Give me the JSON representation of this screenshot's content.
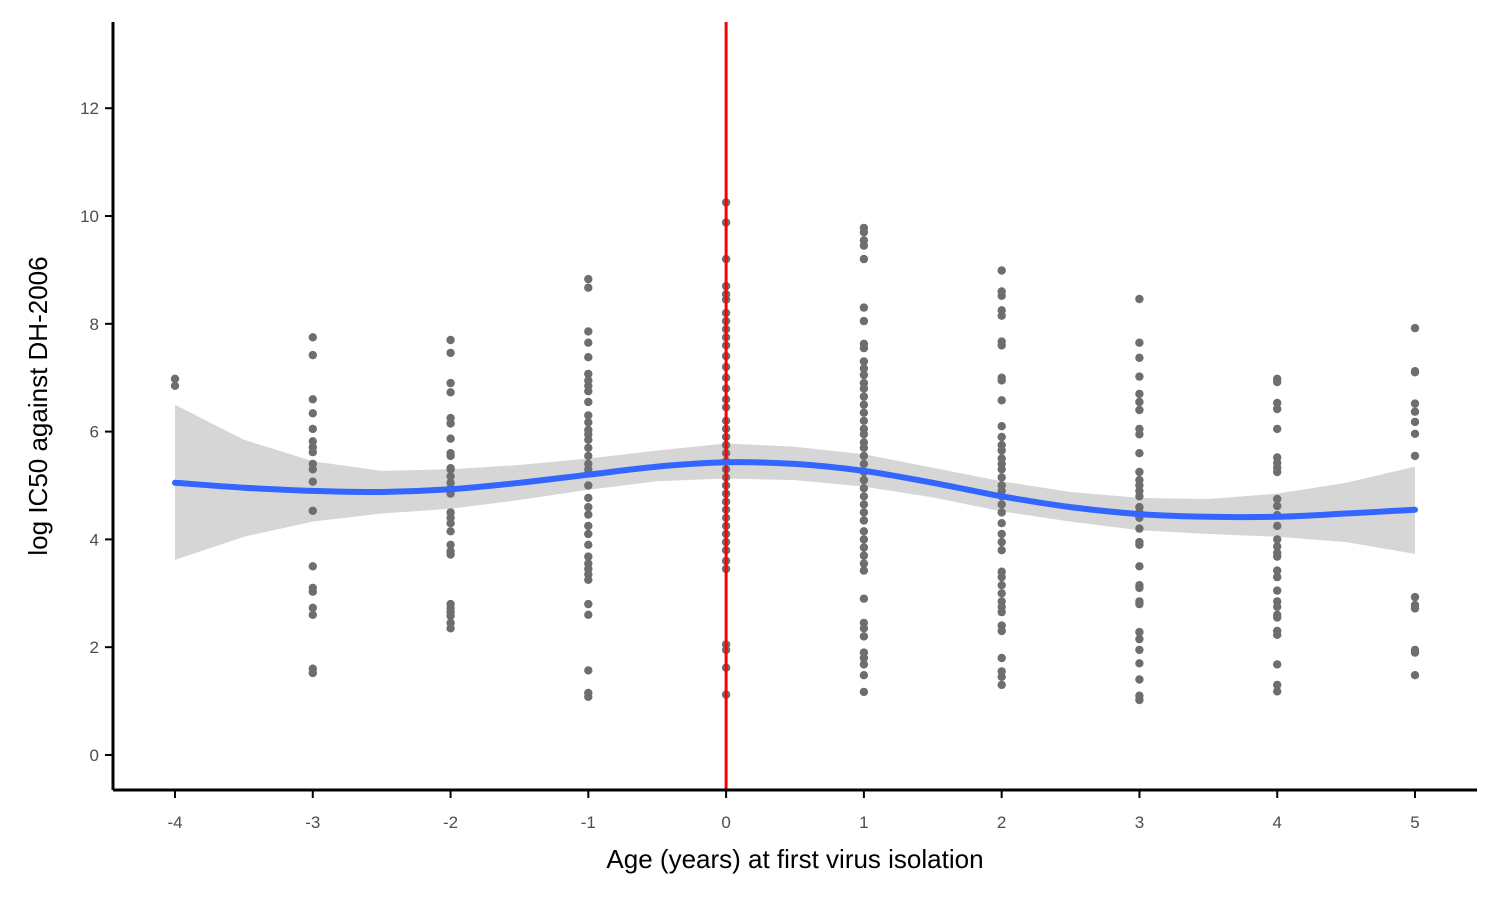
{
  "chart_data": {
    "type": "scatter",
    "title": "",
    "xlabel": "Age (years) at first virus isolation",
    "ylabel": "log IC50 against DH-2006",
    "xlim": [
      -4.45,
      5.45
    ],
    "ylim": [
      -0.65,
      13.6
    ],
    "x_ticks": [
      -4,
      -3,
      -2,
      -1,
      0,
      1,
      2,
      3,
      4,
      5
    ],
    "x_tick_labels": [
      "-4",
      "-3",
      "-2",
      "-1",
      "0",
      "1",
      "2",
      "3",
      "4",
      "5"
    ],
    "y_ticks": [
      0,
      2,
      4,
      6,
      8,
      10,
      12
    ],
    "y_tick_labels": [
      "0",
      "2",
      "4",
      "6",
      "8",
      "10",
      "12"
    ],
    "grid": false,
    "legend": "none",
    "colors": {
      "points": "#6e6e6e",
      "smooth_line": "#3366ff",
      "confidence_band": "#d6d6d6",
      "reference_line": "#ff0000",
      "axis": "#000000"
    },
    "reference_line": {
      "x": 0
    },
    "points": [
      {
        "x": -4,
        "y": [
          6.98,
          6.85
        ]
      },
      {
        "x": -3,
        "y": [
          7.75,
          7.42,
          6.6,
          6.34,
          6.05,
          5.82,
          5.71,
          5.62,
          5.4,
          5.3,
          5.07,
          4.53,
          3.5,
          3.1,
          3.03,
          2.73,
          2.6,
          1.6,
          1.52
        ]
      },
      {
        "x": -2,
        "y": [
          7.7,
          7.46,
          6.9,
          6.73,
          6.25,
          6.15,
          5.87,
          5.6,
          5.55,
          5.32,
          5.3,
          5.17,
          5.05,
          4.95,
          4.85,
          4.5,
          4.4,
          4.3,
          4.15,
          3.9,
          3.78,
          3.72,
          2.8,
          2.72,
          2.65,
          2.58,
          2.45,
          2.35
        ]
      },
      {
        "x": -1,
        "y": [
          8.83,
          8.67,
          7.86,
          7.65,
          7.38,
          7.07,
          6.95,
          6.85,
          6.75,
          6.55,
          6.3,
          6.17,
          6.03,
          5.95,
          5.85,
          5.7,
          5.55,
          5.4,
          5.3,
          5.23,
          5.0,
          4.77,
          4.6,
          4.46,
          4.25,
          4.1,
          3.9,
          3.68,
          3.55,
          3.45,
          3.35,
          3.25,
          2.8,
          2.6,
          1.57,
          1.15,
          1.08
        ]
      },
      {
        "x": 0,
        "y": [
          10.25,
          9.88,
          9.2,
          8.7,
          8.55,
          8.45,
          8.2,
          8.05,
          7.9,
          7.75,
          7.6,
          7.4,
          7.2,
          7.0,
          6.8,
          6.6,
          6.45,
          6.2,
          6.05,
          5.9,
          5.75,
          5.6,
          5.45,
          5.3,
          5.15,
          5.0,
          4.85,
          4.7,
          4.55,
          4.4,
          4.25,
          4.1,
          3.95,
          3.8,
          3.6,
          3.45,
          2.05,
          1.95,
          1.62,
          1.12
        ]
      },
      {
        "x": 1,
        "y": [
          9.78,
          9.7,
          9.55,
          9.45,
          9.2,
          8.3,
          8.05,
          7.63,
          7.55,
          7.3,
          7.17,
          7.05,
          6.9,
          6.8,
          6.65,
          6.5,
          6.35,
          6.2,
          6.05,
          5.95,
          5.8,
          5.7,
          5.55,
          5.4,
          5.25,
          5.1,
          4.95,
          4.8,
          4.65,
          4.5,
          4.35,
          4.15,
          4.0,
          3.85,
          3.7,
          3.55,
          3.42,
          2.9,
          2.45,
          2.35,
          2.2,
          1.9,
          1.8,
          1.68,
          1.48,
          1.17
        ]
      },
      {
        "x": 2,
        "y": [
          8.99,
          8.6,
          8.52,
          8.25,
          8.15,
          7.67,
          7.6,
          7.0,
          6.95,
          6.58,
          6.1,
          5.9,
          5.75,
          5.65,
          5.5,
          5.4,
          5.3,
          5.15,
          5.0,
          4.9,
          4.8,
          4.65,
          4.5,
          4.3,
          4.1,
          3.95,
          3.8,
          3.4,
          3.3,
          3.15,
          3.0,
          2.85,
          2.75,
          2.65,
          2.4,
          2.3,
          1.8,
          1.55,
          1.45,
          1.3
        ]
      },
      {
        "x": 3,
        "y": [
          8.46,
          7.65,
          7.37,
          7.02,
          6.7,
          6.55,
          6.4,
          6.05,
          5.95,
          5.6,
          5.25,
          5.1,
          5.0,
          4.9,
          4.8,
          4.6,
          4.5,
          4.4,
          4.2,
          3.95,
          3.9,
          3.5,
          3.15,
          3.1,
          2.85,
          2.8,
          2.28,
          2.15,
          1.95,
          1.7,
          1.4,
          1.1,
          1.02
        ]
      },
      {
        "x": 4,
        "y": [
          6.98,
          6.92,
          6.53,
          6.42,
          6.05,
          5.52,
          5.42,
          5.33,
          5.25,
          4.75,
          4.62,
          4.45,
          4.25,
          4.0,
          3.87,
          3.75,
          3.68,
          3.42,
          3.3,
          3.05,
          2.85,
          2.75,
          2.6,
          2.55,
          2.3,
          2.23,
          1.68,
          1.3,
          1.18
        ]
      },
      {
        "x": 5,
        "y": [
          7.92,
          7.12,
          7.1,
          6.52,
          6.37,
          6.18,
          5.96,
          5.55,
          2.93,
          2.78,
          2.72,
          1.95,
          1.9,
          1.48
        ]
      }
    ],
    "smooth": {
      "x": [
        -4,
        -3.5,
        -3,
        -2.5,
        -2,
        -1.5,
        -1,
        -0.5,
        0,
        0.5,
        1,
        1.5,
        2,
        2.5,
        3,
        3.5,
        4,
        4.5,
        5
      ],
      "y": [
        5.05,
        4.96,
        4.9,
        4.88,
        4.93,
        5.05,
        5.2,
        5.35,
        5.43,
        5.4,
        5.27,
        5.05,
        4.8,
        4.6,
        4.47,
        4.42,
        4.42,
        4.48,
        4.55
      ],
      "lower": [
        3.62,
        4.05,
        4.33,
        4.48,
        4.57,
        4.73,
        4.92,
        5.08,
        5.13,
        5.1,
        4.98,
        4.78,
        4.52,
        4.33,
        4.17,
        4.1,
        4.05,
        3.95,
        3.73
      ],
      "upper": [
        6.5,
        5.85,
        5.45,
        5.27,
        5.3,
        5.38,
        5.5,
        5.65,
        5.78,
        5.72,
        5.58,
        5.33,
        5.08,
        4.88,
        4.77,
        4.75,
        4.85,
        5.05,
        5.35
      ]
    }
  }
}
